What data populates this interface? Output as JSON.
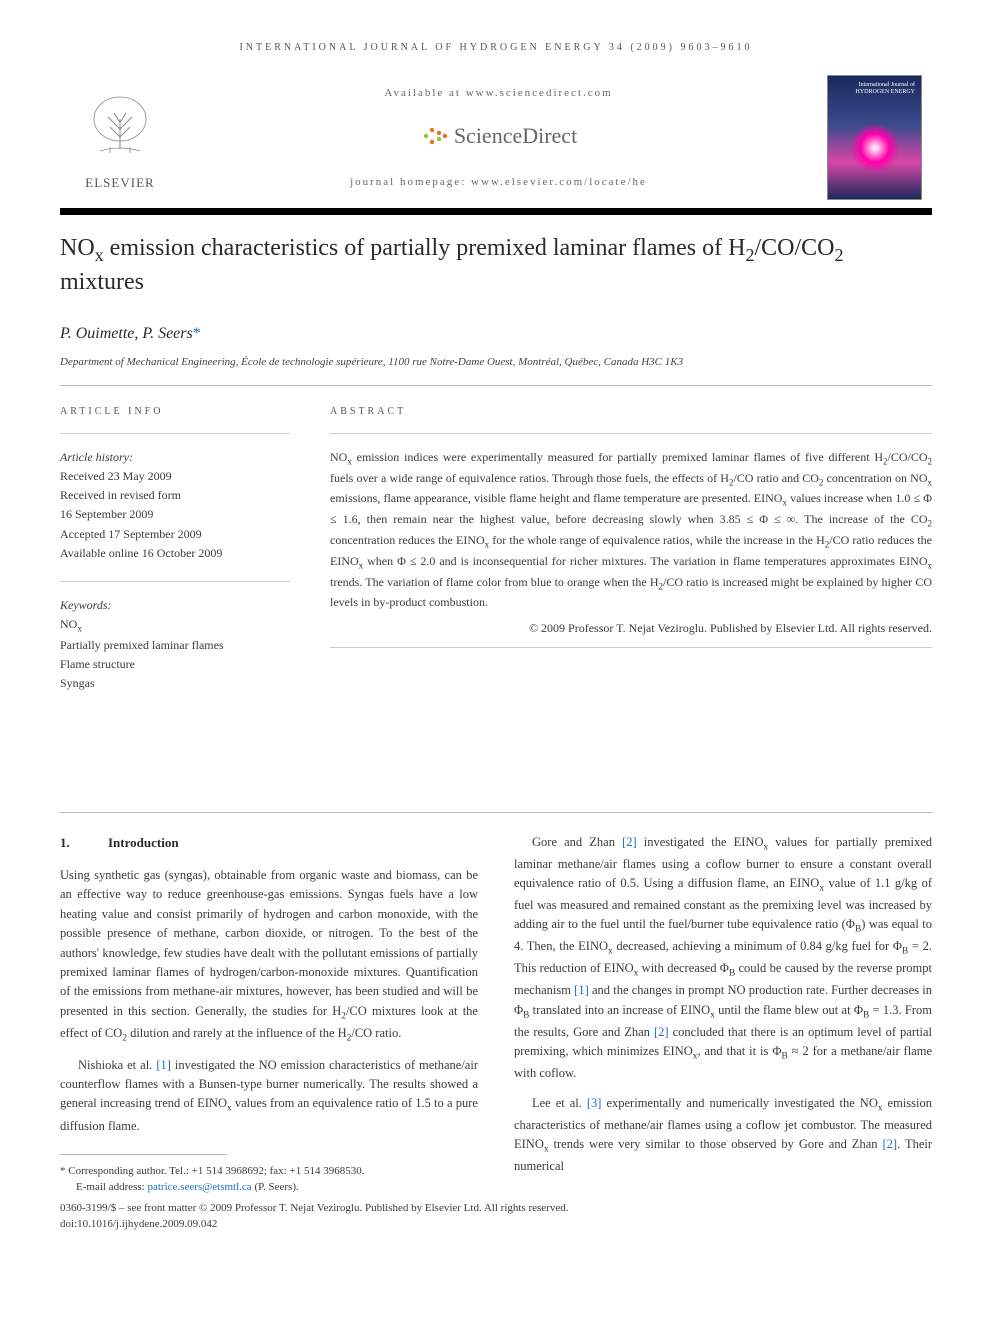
{
  "journal_header": "INTERNATIONAL JOURNAL OF HYDROGEN ENERGY 34 (2009) 9603–9610",
  "available_at": "Available at www.sciencedirect.com",
  "sciencedirect_label": "ScienceDirect",
  "journal_homepage": "journal homepage: www.elsevier.com/locate/he",
  "elsevier_label": "ELSEVIER",
  "cover_title": "International Journal of\nHYDROGEN\nENERGY",
  "article_title_html": "NO<sub>x</sub> emission characteristics of partially premixed laminar flames of H<sub>2</sub>/CO/CO<sub>2</sub> mixtures",
  "authors_html": "P. Ouimette, P. Seers<span class=\"corr-star\">*</span>",
  "affiliation": "Department of Mechanical Engineering, École de technologie supérieure, 1100 rue Notre-Dame Ouest, Montréal, Québec, Canada H3C 1K3",
  "info_label": "ARTICLE INFO",
  "abstract_label": "ABSTRACT",
  "history": {
    "title": "Article history:",
    "received": "Received 23 May 2009",
    "revised1": "Received in revised form",
    "revised2": "16 September 2009",
    "accepted": "Accepted 17 September 2009",
    "online": "Available online 16 October 2009"
  },
  "keywords": {
    "title": "Keywords:",
    "k1_html": "NO<sub>x</sub>",
    "k2": "Partially premixed laminar flames",
    "k3": "Flame structure",
    "k4": "Syngas"
  },
  "abstract_html": "NO<sub>x</sub> emission indices were experimentally measured for partially premixed laminar flames of five different H<sub>2</sub>/CO/CO<sub>2</sub> fuels over a wide range of equivalence ratios. Through those fuels, the effects of H<sub>2</sub>/CO ratio and CO<sub>2</sub> concentration on NO<sub>x</sub> emissions, flame appearance, visible flame height and flame temperature are presented. EINO<sub>x</sub> values increase when 1.0 ≤ Φ ≤ 1.6, then remain near the highest value, before decreasing slowly when 3.85 ≤ Φ ≤ ∞. The increase of the CO<sub>2</sub> concentration reduces the EINO<sub>x</sub> for the whole range of equivalence ratios, while the increase in the H<sub>2</sub>/CO ratio reduces the EINO<sub>x</sub> when Φ ≤ 2.0 and is inconsequential for richer mixtures. The variation in flame temperatures approximates EINO<sub>x</sub> trends. The variation of flame color from blue to orange when the H<sub>2</sub>/CO ratio is increased might be explained by higher CO levels in by-product combustion.",
  "copyright": "© 2009 Professor T. Nejat Veziroglu. Published by Elsevier Ltd. All rights reserved.",
  "section1": {
    "num": "1.",
    "title": "Introduction"
  },
  "col1": {
    "p1_html": "Using synthetic gas (syngas), obtainable from organic waste and biomass, can be an effective way to reduce greenhouse-gas emissions. Syngas fuels have a low heating value and consist primarily of hydrogen and carbon monoxide, with the possible presence of methane, carbon dioxide, or nitrogen. To the best of the authors' knowledge, few studies have dealt with the pollutant emissions of partially premixed laminar flames of hydrogen/carbon-monoxide mixtures. Quantification of the emissions from methane-air mixtures, however, has been studied and will be presented in this section. Generally, the studies for H<sub>2</sub>/CO mixtures look at the effect of CO<sub>2</sub> dilution and rarely at the influence of the H<sub>2</sub>/CO ratio.",
    "p2_html": "Nishioka et al. <span class=\"ref-link\">[1]</span> investigated the NO emission characteristics of methane/air counterflow flames with a Bunsen-type burner numerically. The results showed a general increasing trend of EINO<sub>x</sub> values from an equivalence ratio of 1.5 to a pure diffusion flame."
  },
  "col2": {
    "p1_html": "Gore and Zhan <span class=\"ref-link\">[2]</span> investigated the EINO<sub>x</sub> values for partially premixed laminar methane/air flames using a coflow burner to ensure a constant overall equivalence ratio of 0.5. Using a diffusion flame, an EINO<sub>x</sub> value of 1.1 g/kg of fuel was measured and remained constant as the premixing level was increased by adding air to the fuel until the fuel/burner tube equivalence ratio (Φ<sub>B</sub>) was equal to 4. Then, the EINO<sub>x</sub> decreased, achieving a minimum of 0.84 g/kg fuel for Φ<sub>B</sub> = 2. This reduction of EINO<sub>x</sub> with decreased Φ<sub>B</sub> could be caused by the reverse prompt mechanism <span class=\"ref-link\">[1]</span> and the changes in prompt NO production rate. Further decreases in Φ<sub>B</sub> translated into an increase of EINO<sub>x</sub> until the flame blew out at Φ<sub>B</sub> = 1.3. From the results, Gore and Zhan <span class=\"ref-link\">[2]</span> concluded that there is an optimum level of partial premixing, which minimizes EINO<sub>x</sub>, and that it is Φ<sub>B</sub> ≈ 2 for a methane/air flame with coflow.",
    "p2_html": "Lee et al. <span class=\"ref-link\">[3]</span> experimentally and numerically investigated the NO<sub>x</sub> emission characteristics of methane/air flames using a coflow jet combustor. The measured EINO<sub>x</sub> trends were very similar to those observed by Gore and Zhan <span class=\"ref-link\">[2]</span>. Their numerical"
  },
  "footnote": {
    "corr": "* Corresponding author. Tel.: +1 514 3968692; fax: +1 514 3968530.",
    "email_label": "E-mail address: ",
    "email": "patrice.seers@etsmtl.ca",
    "email_suffix": " (P. Seers).",
    "issn": "0360-3199/$ – see front matter © 2009 Professor T. Nejat Veziroglu. Published by Elsevier Ltd. All rights reserved.",
    "doi": "doi:10.1016/j.ijhydene.2009.09.042"
  },
  "colors": {
    "link": "#1a6ec1",
    "text": "#3a3a3a",
    "rule": "#bbbbbb",
    "sd_orange": "#e9711c"
  }
}
